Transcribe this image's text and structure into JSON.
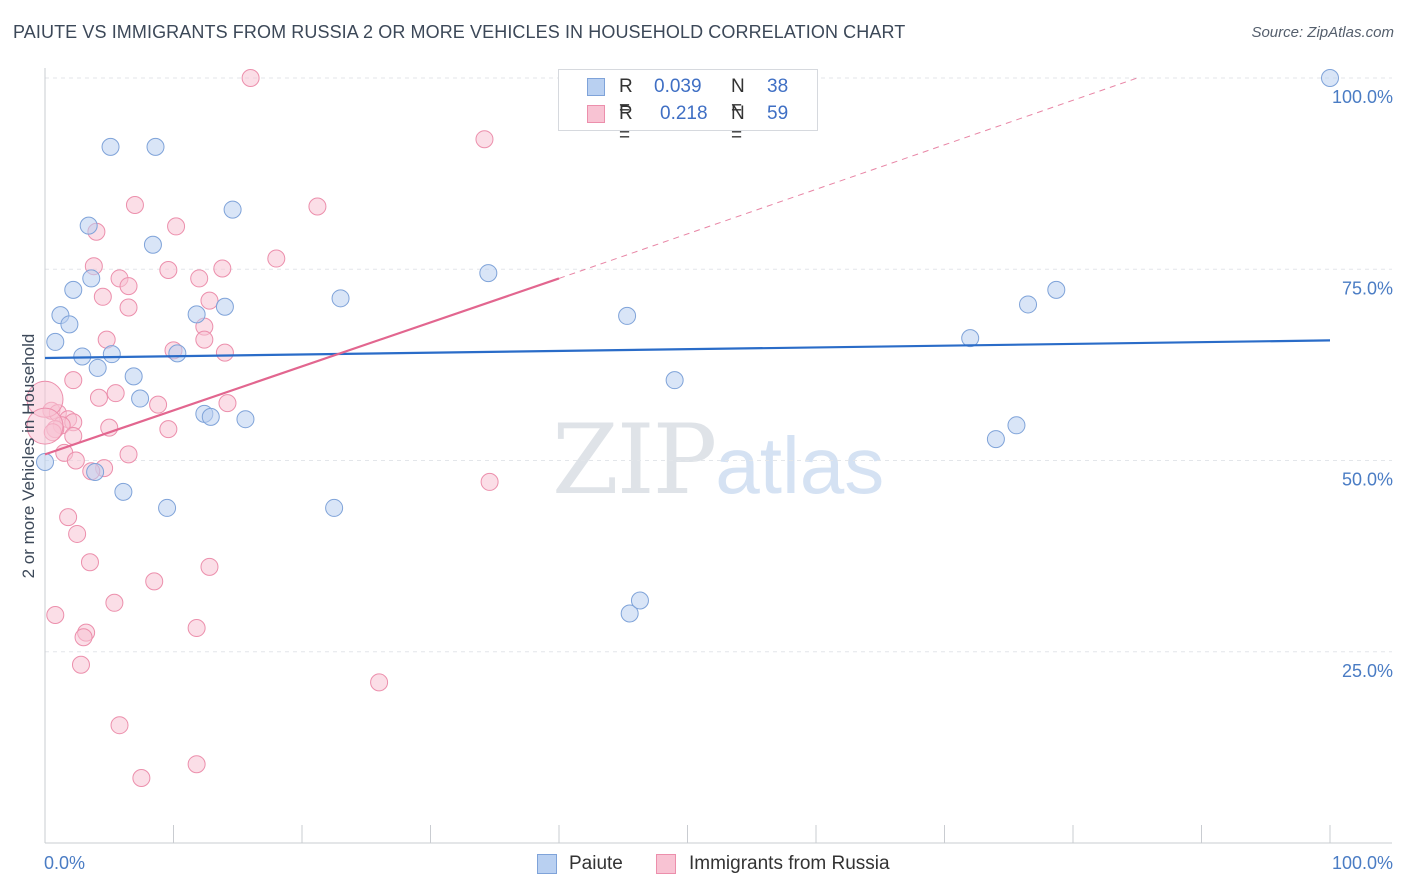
{
  "title": "PAIUTE VS IMMIGRANTS FROM RUSSIA 2 OR MORE VEHICLES IN HOUSEHOLD CORRELATION CHART",
  "source": "Source: ZipAtlas.com",
  "watermark": {
    "zip": "ZIP",
    "atlas": "atlas"
  },
  "legend": {
    "rows": [
      {
        "r_label": "R =",
        "r_value": "0.039",
        "n_label": "N =",
        "n_value": "38"
      },
      {
        "r_label": "R =",
        "r_value": "0.218",
        "n_label": "N =",
        "n_value": "59"
      }
    ]
  },
  "bottom_legend": [
    "Paiute",
    "Immigrants from Russia"
  ],
  "colors": {
    "paiute_fill": "#b9d0f1",
    "paiute_stroke": "#7fa3d9",
    "paiute_line": "#2a6cc8",
    "russia_fill": "#f8c3d3",
    "russia_stroke": "#ec8fac",
    "russia_line": "#e2668f",
    "tick_text": "#4a7cc4",
    "grid": "#e3e6ea"
  },
  "chart_data": {
    "type": "scatter",
    "title": "PAIUTE VS IMMIGRANTS FROM RUSSIA 2 OR MORE VEHICLES IN HOUSEHOLD CORRELATION CHART",
    "xlabel": "",
    "ylabel": "2 or more Vehicles in Household",
    "xlim": [
      0,
      100
    ],
    "ylim": [
      0,
      100
    ],
    "x_tick_labels": [
      "0.0%",
      "100.0%"
    ],
    "y_tick_values": [
      25,
      50,
      75,
      100
    ],
    "y_tick_labels": [
      "25.0%",
      "50.0%",
      "75.0%",
      "100.0%"
    ],
    "grid": true,
    "legend_position": "top-center",
    "series": [
      {
        "name": "Paiute",
        "R": 0.039,
        "N": 38,
        "trend": {
          "x0": 0,
          "y0": 63.4,
          "x1": 100,
          "y1": 65.7
        },
        "points": [
          [
            5.1,
            91.0
          ],
          [
            8.6,
            91.0
          ],
          [
            14.6,
            82.8
          ],
          [
            3.4,
            80.7
          ],
          [
            8.4,
            78.2
          ],
          [
            3.6,
            73.8
          ],
          [
            2.2,
            72.3
          ],
          [
            23.0,
            71.2
          ],
          [
            14.0,
            70.1
          ],
          [
            11.8,
            69.1
          ],
          [
            1.2,
            69.0
          ],
          [
            1.9,
            67.8
          ],
          [
            0.8,
            65.5
          ],
          [
            10.3,
            64.0
          ],
          [
            5.2,
            63.9
          ],
          [
            2.9,
            63.6
          ],
          [
            4.1,
            62.1
          ],
          [
            6.9,
            61.0
          ],
          [
            7.4,
            58.1
          ],
          [
            12.4,
            56.1
          ],
          [
            12.9,
            55.7
          ],
          [
            15.6,
            55.4
          ],
          [
            3.9,
            48.5
          ],
          [
            6.1,
            45.9
          ],
          [
            9.5,
            43.8
          ],
          [
            22.5,
            43.8
          ],
          [
            0.0,
            49.8
          ],
          [
            34.5,
            74.5
          ],
          [
            45.3,
            68.9
          ],
          [
            49.0,
            60.5
          ],
          [
            45.5,
            30.0
          ],
          [
            46.3,
            31.7
          ],
          [
            72.0,
            66.0
          ],
          [
            76.5,
            70.4
          ],
          [
            78.7,
            72.3
          ],
          [
            74.0,
            52.8
          ],
          [
            75.6,
            54.6
          ],
          [
            100.0,
            100.0
          ]
        ]
      },
      {
        "name": "Immigrants from Russia",
        "R": 0.218,
        "N": 59,
        "trend": {
          "x0": 0,
          "y0": 50.8,
          "x1": 40,
          "y1": 73.8
        },
        "trend_dashed": {
          "x0": 40,
          "y0": 73.8,
          "x1": 85,
          "y1": 100
        },
        "points": [
          [
            16.0,
            100.0
          ],
          [
            34.2,
            92.0
          ],
          [
            7.0,
            83.4
          ],
          [
            21.2,
            83.2
          ],
          [
            10.2,
            80.6
          ],
          [
            4.0,
            79.9
          ],
          [
            18.0,
            76.4
          ],
          [
            3.8,
            75.4
          ],
          [
            9.6,
            74.9
          ],
          [
            13.8,
            75.1
          ],
          [
            5.8,
            73.8
          ],
          [
            12.0,
            73.8
          ],
          [
            6.5,
            72.8
          ],
          [
            4.5,
            71.4
          ],
          [
            12.8,
            70.9
          ],
          [
            6.5,
            70.0
          ],
          [
            12.4,
            67.5
          ],
          [
            4.8,
            65.8
          ],
          [
            12.4,
            65.8
          ],
          [
            10.0,
            64.4
          ],
          [
            14.0,
            64.1
          ],
          [
            2.2,
            60.5
          ],
          [
            5.5,
            58.8
          ],
          [
            4.2,
            58.2
          ],
          [
            14.2,
            57.5
          ],
          [
            8.8,
            57.3
          ],
          [
            0.5,
            56.5
          ],
          [
            1.0,
            56.2
          ],
          [
            1.8,
            55.4
          ],
          [
            2.2,
            55.0
          ],
          [
            1.3,
            54.6
          ],
          [
            0.8,
            54.1
          ],
          [
            5.0,
            54.3
          ],
          [
            9.6,
            54.1
          ],
          [
            2.2,
            53.2
          ],
          [
            0.6,
            53.7
          ],
          [
            1.5,
            51.0
          ],
          [
            6.5,
            50.8
          ],
          [
            2.4,
            50.0
          ],
          [
            4.6,
            49.0
          ],
          [
            3.6,
            48.6
          ],
          [
            34.6,
            47.2
          ],
          [
            1.8,
            42.6
          ],
          [
            2.5,
            40.4
          ],
          [
            3.5,
            36.7
          ],
          [
            12.8,
            36.1
          ],
          [
            8.5,
            34.2
          ],
          [
            5.4,
            31.4
          ],
          [
            0.8,
            29.8
          ],
          [
            3.2,
            27.5
          ],
          [
            11.8,
            28.1
          ],
          [
            3.0,
            26.9
          ],
          [
            2.8,
            23.3
          ],
          [
            26.0,
            21.0
          ],
          [
            5.8,
            15.4
          ],
          [
            11.8,
            10.3
          ],
          [
            7.5,
            8.5
          ],
          [
            0.0,
            58.0
          ],
          [
            0.0,
            54.5
          ]
        ]
      }
    ]
  }
}
